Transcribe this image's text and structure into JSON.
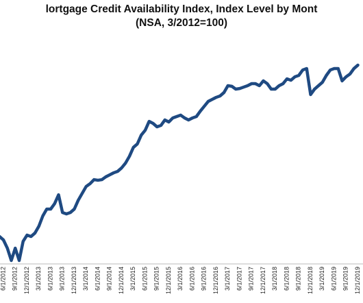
{
  "chart_data": {
    "type": "line",
    "title": "lortgage Credit Availability Index, Index Level by Mont",
    "subtitle": "(NSA, 3/2012=100)",
    "categories": [
      null,
      "6/1/2012",
      null,
      null,
      "9/1/2012",
      null,
      null,
      "12/1/2012",
      null,
      null,
      "3/1/2013",
      null,
      null,
      "6/1/2013",
      null,
      null,
      "9/1/2013",
      null,
      null,
      "12/1/2013",
      null,
      null,
      "3/1/2014",
      null,
      null,
      "6/1/2014",
      null,
      null,
      "9/1/2014",
      null,
      null,
      "12/1/2014",
      null,
      null,
      "3/1/2015",
      null,
      null,
      "6/1/2015",
      null,
      null,
      "9/1/2015",
      null,
      null,
      "12/1/2015",
      null,
      null,
      "3/1/2016",
      null,
      null,
      "6/1/2016",
      null,
      null,
      "9/1/2016",
      null,
      null,
      "12/1/2016",
      null,
      null,
      "3/1/2017",
      null,
      null,
      "6/1/2017",
      null,
      null,
      "9/1/2017",
      null,
      null,
      "12/1/2017",
      null,
      null,
      "3/1/2018",
      null,
      null,
      "6/1/2018",
      null,
      null,
      "9/1/2018",
      null,
      null,
      "12/1/2018",
      null,
      null,
      "3/1/2019",
      null,
      null,
      "6/1/2019",
      null,
      null,
      "9/1/2019",
      null,
      null,
      "12/1/2019"
    ],
    "values": [
      100.0,
      98.3,
      94.2,
      88.1,
      94.2,
      88.1,
      97.6,
      100.7,
      100.0,
      101.7,
      105.1,
      110.2,
      113.6,
      113.6,
      116.3,
      120.7,
      111.9,
      111.2,
      111.9,
      113.6,
      118.0,
      121.4,
      124.8,
      126.2,
      128.2,
      127.9,
      128.2,
      129.6,
      130.6,
      131.6,
      132.3,
      134.0,
      136.4,
      139.8,
      144.2,
      145.9,
      150.3,
      152.7,
      157.1,
      156.1,
      154.4,
      155.1,
      157.8,
      156.8,
      158.8,
      159.5,
      160.2,
      158.8,
      157.8,
      158.8,
      159.5,
      162.2,
      164.6,
      167.0,
      168.0,
      169.0,
      169.7,
      171.4,
      174.8,
      174.5,
      173.1,
      173.4,
      174.1,
      174.8,
      175.8,
      175.8,
      174.8,
      177.2,
      175.8,
      173.1,
      173.1,
      174.8,
      175.8,
      178.2,
      177.5,
      179.2,
      179.9,
      182.6,
      183.3,
      170.4,
      173.1,
      174.8,
      176.5,
      179.9,
      182.6,
      183.3,
      183.3,
      177.2,
      179.2,
      180.6,
      183.3,
      185.0
    ],
    "color": "#1f4a82",
    "ylim": [
      86.4,
      200.3
    ]
  }
}
